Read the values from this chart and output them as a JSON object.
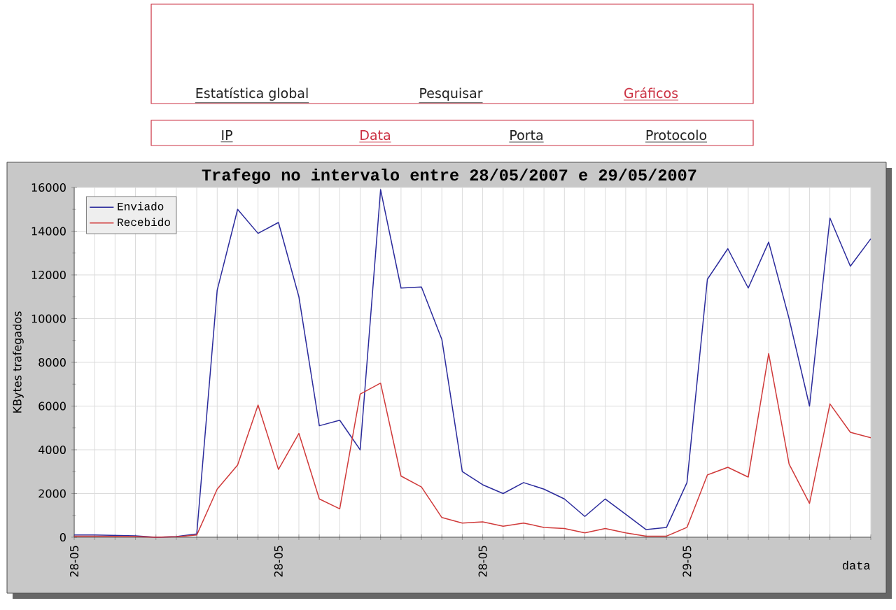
{
  "chart_data": {
    "type": "line",
    "title": "Trafego no intervalo entre 28/05/2007 e 29/05/2007",
    "xlabel": "data",
    "ylabel": "KBytes trafegados",
    "annotations": [
      "Estatística global",
      "Pesquisar",
      "Gráficos",
      "IP",
      "Data",
      "Porta",
      "Protocolo"
    ],
    "categories": [
      "28-05",
      null,
      null,
      null,
      null,
      null,
      null,
      null,
      null,
      null,
      "28-05",
      null,
      null,
      null,
      null,
      null,
      null,
      null,
      null,
      null,
      "28-05",
      null,
      null,
      null,
      null,
      null,
      null,
      null,
      null,
      null,
      "29-05",
      null,
      null,
      null,
      null,
      null,
      null,
      null,
      null,
      null
    ],
    "series": [
      {
        "name": "Enviado",
        "color": "#2b2b9c",
        "values": [
          100,
          100,
          80,
          60,
          0,
          30,
          150,
          11300,
          15000,
          13900,
          14400,
          11000,
          5100,
          5350,
          4000,
          15900,
          11400,
          11450,
          9050,
          3000,
          2400,
          2000,
          2500,
          2200,
          1750,
          950,
          1750,
          1050,
          350,
          450,
          2500,
          11800,
          13200,
          11400,
          13500,
          10000,
          6000,
          14600,
          12400,
          13650
        ]
      },
      {
        "name": "Recebido",
        "color": "#d03a3a",
        "values": [
          50,
          50,
          40,
          30,
          0,
          20,
          100,
          2200,
          3300,
          6050,
          3100,
          4750,
          1750,
          1300,
          6550,
          7050,
          2800,
          2300,
          900,
          650,
          700,
          500,
          650,
          450,
          400,
          200,
          400,
          200,
          50,
          50,
          450,
          2850,
          3200,
          2750,
          8400,
          3350,
          1550,
          6100,
          4800,
          4550
        ]
      }
    ],
    "ylim": [
      0,
      16000
    ],
    "yticks": [
      0,
      2000,
      4000,
      6000,
      8000,
      10000,
      12000,
      14000,
      16000
    ],
    "grid": true,
    "legend": "top left"
  }
}
